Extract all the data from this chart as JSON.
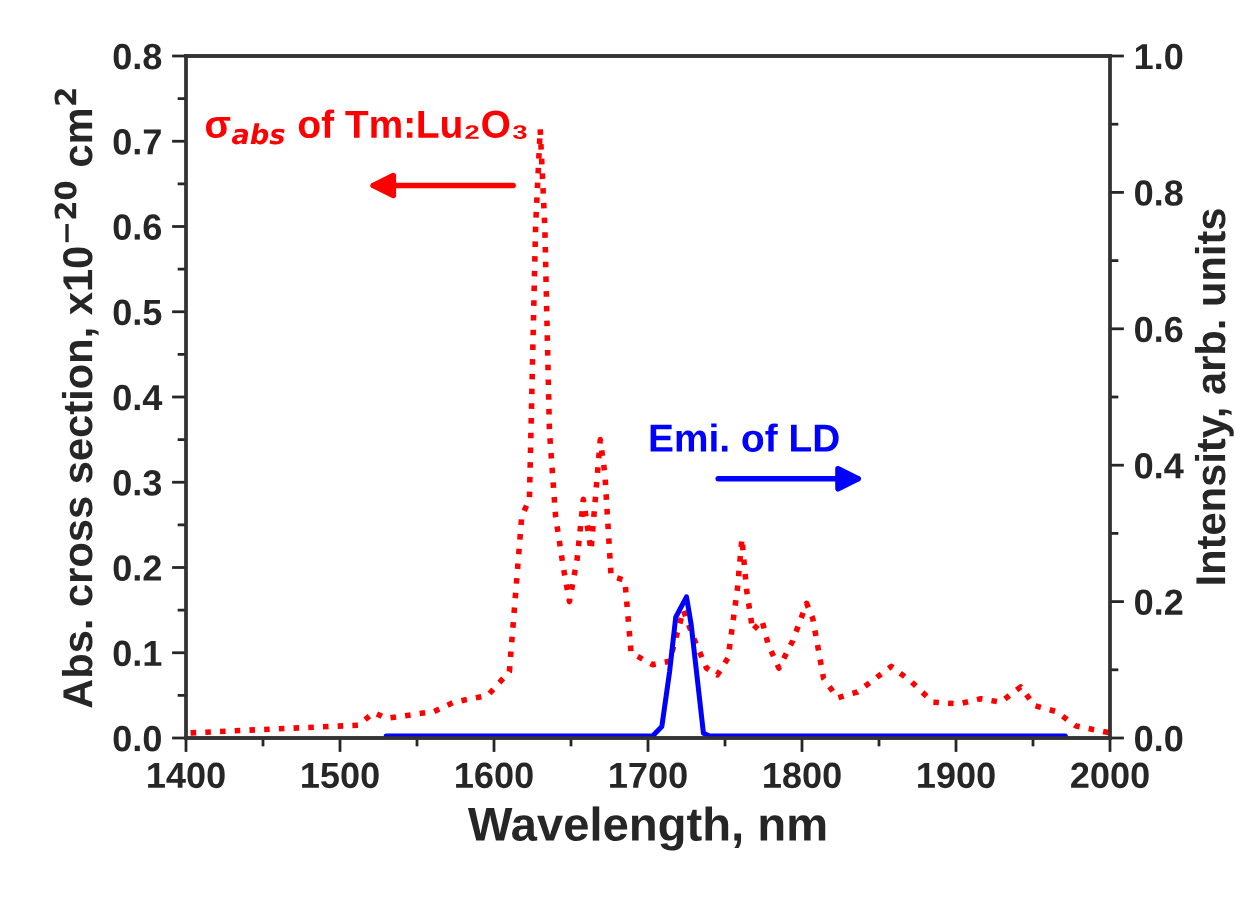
{
  "chart_data": {
    "type": "line",
    "xlabel": "Wavelength, nm",
    "ylabel": "Abs. cross section, x10$^{−20}$ cm$^{2}$",
    "y2label": "Intensity, arb. units",
    "xlim": [
      1400,
      2000
    ],
    "xticks": [
      1400,
      1500,
      1600,
      1700,
      1800,
      1900,
      2000
    ],
    "ylim": [
      0,
      0.8
    ],
    "yticks": [
      {
        "value": 0,
        "label": "0.0"
      },
      0.1,
      0.2,
      0.3,
      0.4,
      0.5,
      0.6,
      0.7,
      0.8
    ],
    "y2lim": [
      0,
      1.0
    ],
    "y2ticks": [
      {
        "value": 0,
        "label": "0.0"
      },
      0.2,
      0.4,
      0.6,
      0.8,
      {
        "value": 1.0,
        "label": "1.0"
      }
    ],
    "grid": false,
    "legend": false,
    "annotations": [
      "σ$_{abs}$ of Tm:Lu₂O₃",
      "Emi. of LD"
    ],
    "series": [
      {
        "color": "#ff0000",
        "line_style": "dotted",
        "x": [
          1403,
          1450,
          1512,
          1522,
          1530,
          1561,
          1574,
          1596,
          1610,
          1618,
          1623,
          1627,
          1630,
          1633,
          1636,
          1640,
          1645,
          1649,
          1654,
          1658,
          1663,
          1669,
          1672,
          1676,
          1685,
          1689,
          1703,
          1714,
          1723,
          1729,
          1738,
          1745,
          1752,
          1758,
          1761,
          1764,
          1768,
          1774,
          1778,
          1785,
          1794,
          1803,
          1807,
          1814,
          1823,
          1836,
          1858,
          1871,
          1885,
          1902,
          1916,
          1929,
          1942,
          1951,
          1965,
          1978,
          2000
        ],
        "values": [
          0.006,
          0.01,
          0.015,
          0.03,
          0.023,
          0.031,
          0.042,
          0.05,
          0.078,
          0.26,
          0.28,
          0.6,
          0.714,
          0.6,
          0.36,
          0.26,
          0.2,
          0.16,
          0.21,
          0.28,
          0.22,
          0.35,
          0.31,
          0.19,
          0.185,
          0.1,
          0.086,
          0.09,
          0.15,
          0.12,
          0.082,
          0.074,
          0.094,
          0.174,
          0.234,
          0.174,
          0.126,
          0.138,
          0.11,
          0.082,
          0.114,
          0.158,
          0.14,
          0.07,
          0.047,
          0.054,
          0.084,
          0.066,
          0.042,
          0.04,
          0.046,
          0.042,
          0.06,
          0.038,
          0.031,
          0.014,
          0.006
        ]
      },
      {
        "color": "#0000ff",
        "line_style": "solid",
        "axis": "y2",
        "x": [
          1530,
          1703,
          1709,
          1714,
          1718,
          1725,
          1728,
          1732,
          1736,
          1740,
          1971
        ],
        "values": [
          0.003,
          0.003,
          0.017,
          0.097,
          0.177,
          0.207,
          0.167,
          0.087,
          0.007,
          0.003,
          0.003
        ]
      }
    ]
  }
}
